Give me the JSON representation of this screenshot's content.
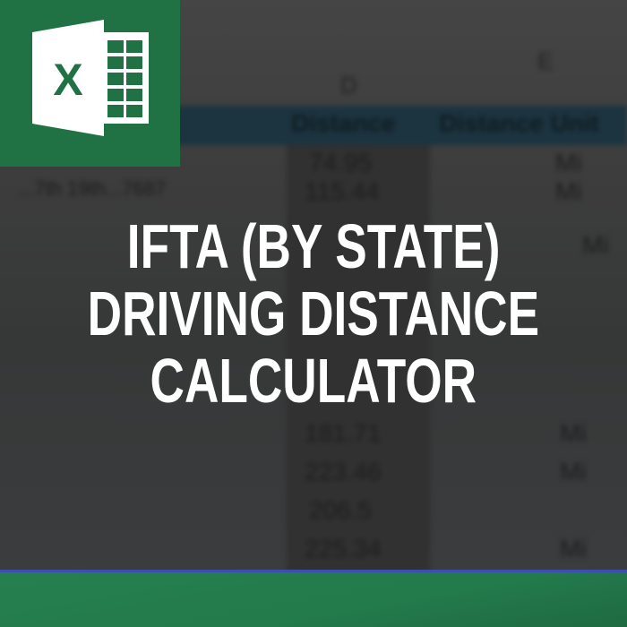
{
  "background_sheet": {
    "column_letters": [
      "D",
      "E"
    ],
    "headers": [
      "Distance",
      "Distance Unit"
    ],
    "left_cell": "...7th 19th...7687",
    "distances": [
      "74.95",
      "115.44",
      "181.71",
      "223.46",
      "206.5",
      "225.34"
    ],
    "unit": "Mi"
  },
  "title": {
    "lines": [
      "IFTA (BY STATE)",
      "DRIVING DISTANCE",
      "CALCULATOR"
    ]
  },
  "logo": {
    "letter": "X",
    "icon": "excel-logo-icon"
  },
  "colors": {
    "excel_green": "#207245",
    "bottom_bar": "#25804f",
    "accent_line": "#3a4fb0",
    "title_text": "#ffffff"
  }
}
